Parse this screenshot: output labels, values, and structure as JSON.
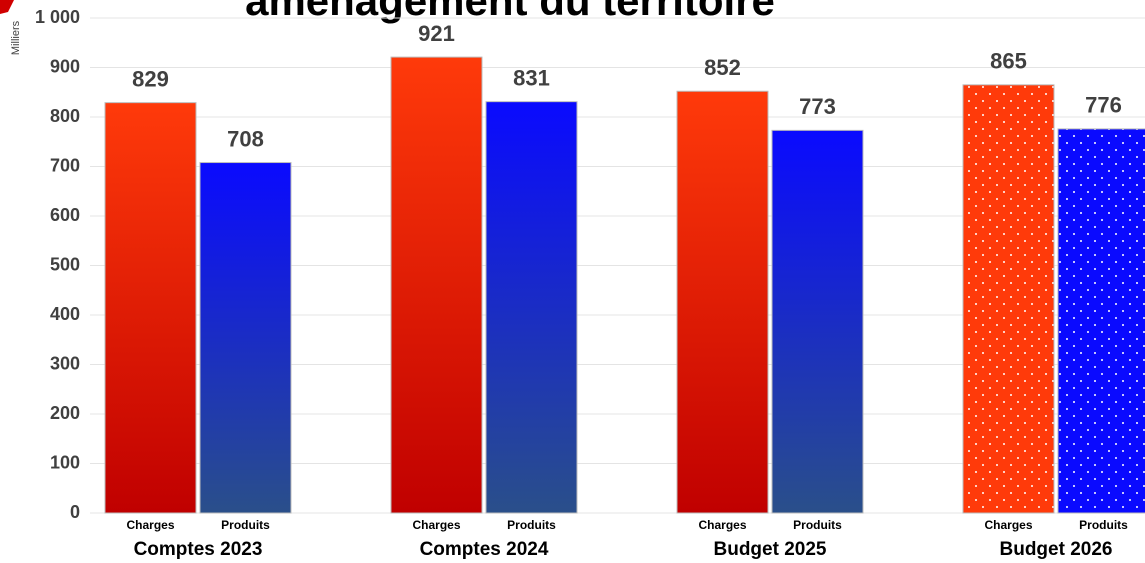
{
  "chart_data": {
    "type": "bar",
    "title": "aménagement du territoire",
    "y_label": "Milliers",
    "categories": [
      "Comptes 2023",
      "Comptes 2024",
      "Budget 2025",
      "Budget 2026"
    ],
    "series": [
      {
        "name": "Charges",
        "color": "#ff3a0a",
        "gradient_to": "#c00000",
        "values": [
          829,
          921,
          852,
          865
        ]
      },
      {
        "name": "Produits",
        "color": "#0a0aff",
        "gradient_to": "#2a4f8a",
        "values": [
          708,
          831,
          773,
          776
        ]
      }
    ],
    "dotted": [
      false,
      false,
      false,
      true
    ],
    "ylim": [
      0,
      1000
    ],
    "yticks": [
      0,
      100,
      200,
      300,
      400,
      500,
      600,
      700,
      800,
      900,
      {
        "value": 1000,
        "label": "1 000"
      }
    ],
    "grid": true
  }
}
